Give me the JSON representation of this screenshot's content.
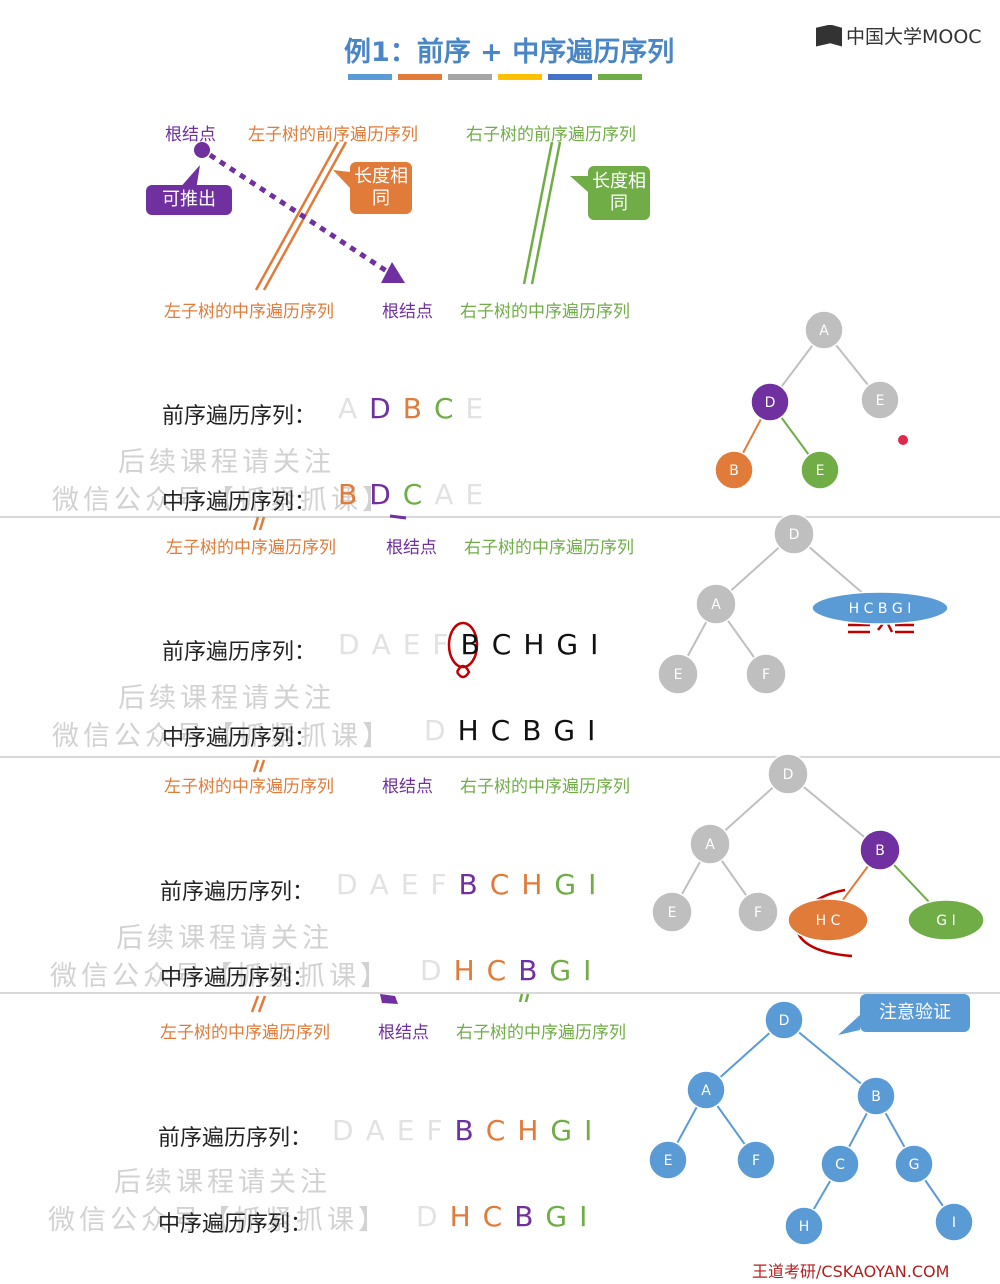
{
  "title": "例1：前序 + 中序遍历序列",
  "logo": "中国大学MOOC",
  "footer": "王道考研/CSKAOYAN.COM",
  "colors": {
    "purple": "#7030a0",
    "orange": "#e07b39",
    "green": "#70ad47",
    "gray": "#bfbfbf",
    "blue": "#5b9bd5",
    "red": "#c00000"
  },
  "top_diagram": {
    "pre_root": "根结点",
    "pre_left": "左子树的前序遍历序列",
    "pre_right": "右子树的前序遍历序列",
    "in_left": "左子树的中序遍历序列",
    "in_root": "根结点",
    "in_right": "右子树的中序遍历序列",
    "infer": "可推出",
    "same_len_1": "长度相同",
    "same_len_2": "长度相同"
  },
  "labels": {
    "preorder": "前序遍历序列：",
    "inorder": "中序遍历序列：",
    "left_in": "左子树的中序遍历序列",
    "root": "根结点",
    "right_in": "右子树的中序遍历序列",
    "note": "注意验证"
  },
  "watermark": {
    "line1": "后续课程请关注",
    "line2": "微信公众号【抓紧抓课】"
  },
  "steps": [
    {
      "pre": [
        {
          "t": "A",
          "c": "gray"
        },
        {
          "t": "D",
          "c": "purple"
        },
        {
          "t": "B",
          "c": "orange"
        },
        {
          "t": "C",
          "c": "green"
        },
        {
          "t": "E",
          "c": "gray"
        }
      ],
      "in": [
        {
          "t": "B",
          "c": "orange"
        },
        {
          "t": "D",
          "c": "purple"
        },
        {
          "t": "C",
          "c": "green"
        },
        {
          "t": "A",
          "c": "gray"
        },
        {
          "t": "E",
          "c": "gray"
        }
      ]
    },
    {
      "pre": [
        {
          "t": "D",
          "c": "gray"
        },
        {
          "t": "A",
          "c": "gray"
        },
        {
          "t": "E",
          "c": "gray"
        },
        {
          "t": "F",
          "c": "gray"
        },
        {
          "t": "B",
          "c": "black"
        },
        {
          "t": "C",
          "c": "black"
        },
        {
          "t": "H",
          "c": "black"
        },
        {
          "t": "G",
          "c": "black"
        },
        {
          "t": "I",
          "c": "black"
        }
      ],
      "in": [
        {
          "t": "D",
          "c": "gray"
        },
        {
          "t": "H",
          "c": "black"
        },
        {
          "t": "C",
          "c": "black"
        },
        {
          "t": "B",
          "c": "black"
        },
        {
          "t": "G",
          "c": "black"
        },
        {
          "t": "I",
          "c": "black"
        }
      ]
    },
    {
      "pre": [
        {
          "t": "D",
          "c": "gray"
        },
        {
          "t": "A",
          "c": "gray"
        },
        {
          "t": "E",
          "c": "gray"
        },
        {
          "t": "F",
          "c": "gray"
        },
        {
          "t": "B",
          "c": "purple"
        },
        {
          "t": "C",
          "c": "orange"
        },
        {
          "t": "H",
          "c": "orange"
        },
        {
          "t": "G",
          "c": "green"
        },
        {
          "t": "I",
          "c": "green"
        }
      ],
      "in": [
        {
          "t": "D",
          "c": "gray"
        },
        {
          "t": "H",
          "c": "orange"
        },
        {
          "t": "C",
          "c": "orange"
        },
        {
          "t": "B",
          "c": "purple"
        },
        {
          "t": "G",
          "c": "green"
        },
        {
          "t": "I",
          "c": "green"
        }
      ]
    },
    {
      "pre": [
        {
          "t": "D",
          "c": "gray"
        },
        {
          "t": "A",
          "c": "gray"
        },
        {
          "t": "E",
          "c": "gray"
        },
        {
          "t": "F",
          "c": "gray"
        },
        {
          "t": "B",
          "c": "purple"
        },
        {
          "t": "C",
          "c": "orange"
        },
        {
          "t": "H",
          "c": "orange"
        },
        {
          "t": "G",
          "c": "green"
        },
        {
          "t": "I",
          "c": "green"
        }
      ],
      "in": [
        {
          "t": "D",
          "c": "gray"
        },
        {
          "t": "H",
          "c": "orange"
        },
        {
          "t": "C",
          "c": "orange"
        },
        {
          "t": "B",
          "c": "purple"
        },
        {
          "t": "G",
          "c": "green"
        },
        {
          "t": "I",
          "c": "green"
        }
      ]
    }
  ],
  "trees": {
    "t1": {
      "nodes": [
        {
          "id": "A",
          "label": "A",
          "c": "gray"
        },
        {
          "id": "D",
          "label": "D",
          "c": "purple"
        },
        {
          "id": "E",
          "label": "E",
          "c": "gray"
        },
        {
          "id": "B",
          "label": "B",
          "c": "orange"
        },
        {
          "id": "E2",
          "label": "E",
          "c": "green"
        }
      ]
    },
    "t2": {
      "nodes": [
        {
          "id": "D",
          "label": "D",
          "c": "gray"
        },
        {
          "id": "A",
          "label": "A",
          "c": "gray"
        },
        {
          "id": "HCBGI",
          "label": "H C B G I",
          "c": "blue"
        },
        {
          "id": "E",
          "label": "E",
          "c": "gray"
        },
        {
          "id": "F",
          "label": "F",
          "c": "gray"
        }
      ]
    },
    "t3": {
      "nodes": [
        {
          "id": "D",
          "label": "D",
          "c": "gray"
        },
        {
          "id": "A",
          "label": "A",
          "c": "gray"
        },
        {
          "id": "B",
          "label": "B",
          "c": "purple"
        },
        {
          "id": "E",
          "label": "E",
          "c": "gray"
        },
        {
          "id": "F",
          "label": "F",
          "c": "gray"
        },
        {
          "id": "HC",
          "label": "H C",
          "c": "orange"
        },
        {
          "id": "GI",
          "label": "G I",
          "c": "green"
        }
      ]
    },
    "t4": {
      "nodes": [
        {
          "id": "D",
          "label": "D",
          "c": "blue"
        },
        {
          "id": "A",
          "label": "A",
          "c": "blue"
        },
        {
          "id": "B",
          "label": "B",
          "c": "blue"
        },
        {
          "id": "E",
          "label": "E",
          "c": "blue"
        },
        {
          "id": "F",
          "label": "F",
          "c": "blue"
        },
        {
          "id": "C",
          "label": "C",
          "c": "blue"
        },
        {
          "id": "G",
          "label": "G",
          "c": "blue"
        },
        {
          "id": "H",
          "label": "H",
          "c": "blue"
        },
        {
          "id": "I",
          "label": "I",
          "c": "blue"
        }
      ]
    }
  }
}
